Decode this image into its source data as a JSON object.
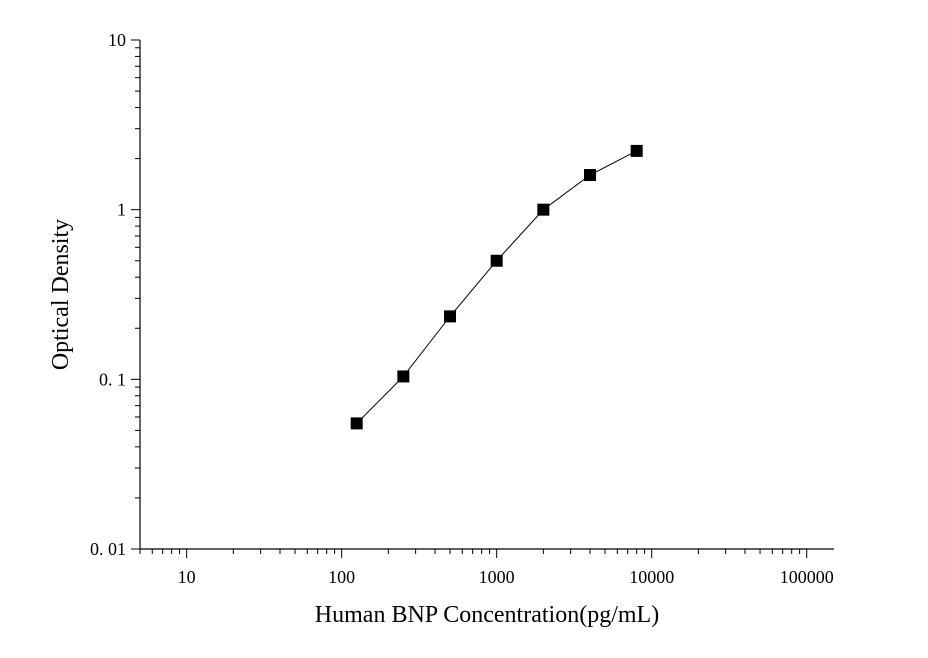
{
  "chart_data": {
    "type": "line",
    "xlabel": "Human BNP Concentration(pg/mL)",
    "ylabel": "Optical Density",
    "x_scale": "log",
    "y_scale": "log",
    "xlim": [
      5,
      150000
    ],
    "ylim": [
      0.01,
      10
    ],
    "x_ticks": [
      {
        "value": 10,
        "label": "10"
      },
      {
        "value": 100,
        "label": "100"
      },
      {
        "value": 1000,
        "label": "1000"
      },
      {
        "value": 10000,
        "label": "10000"
      },
      {
        "value": 100000,
        "label": "100000"
      }
    ],
    "y_ticks": [
      {
        "value": 0.01,
        "label": "0. 01"
      },
      {
        "value": 0.1,
        "label": "0. 1"
      },
      {
        "value": 1,
        "label": "1"
      },
      {
        "value": 10,
        "label": "10"
      }
    ],
    "grid": false,
    "legend": "none",
    "marker": "square",
    "series": [
      {
        "x": [
          125,
          250,
          500,
          1000,
          2000,
          4000,
          8000
        ],
        "y": [
          0.055,
          0.104,
          0.235,
          0.5,
          1.0,
          1.6,
          2.22
        ]
      }
    ],
    "colors": {
      "line": "#000000",
      "marker": "#000000",
      "background": "#ffffff"
    }
  }
}
